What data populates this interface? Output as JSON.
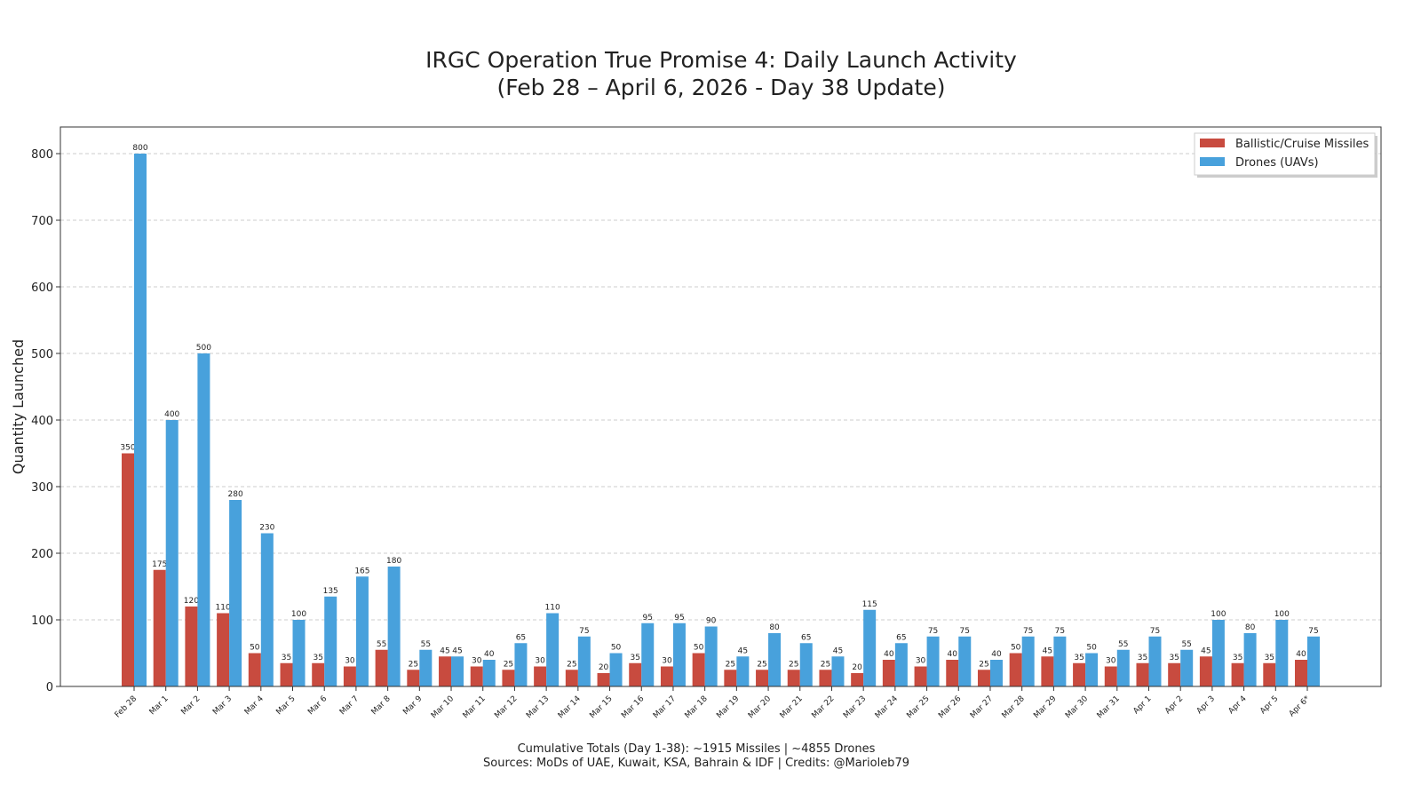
{
  "chart_data": {
    "type": "bar",
    "title": "IRGC Operation True Promise 4: Daily Launch Activity",
    "subtitle": "(Feb 28 – April 6, 2026 - Day 38 Update)",
    "xlabel": "",
    "ylabel": "Quantity Launched",
    "ylim": [
      0,
      840
    ],
    "yticks": [
      0,
      100,
      200,
      300,
      400,
      500,
      600,
      700,
      800
    ],
    "grid": true,
    "legend_position": "top-right",
    "categories": [
      "Feb 28",
      "Mar 1",
      "Mar 2",
      "Mar 3",
      "Mar 4",
      "Mar 5",
      "Mar 6",
      "Mar 7",
      "Mar 8",
      "Mar 9",
      "Mar 10",
      "Mar 11",
      "Mar 12",
      "Mar 13",
      "Mar 14",
      "Mar 15",
      "Mar 16",
      "Mar 17",
      "Mar 18",
      "Mar 19",
      "Mar 20",
      "Mar 21",
      "Mar 22",
      "Mar 23",
      "Mar 24",
      "Mar 25",
      "Mar 26",
      "Mar 27",
      "Mar 28",
      "Mar 29",
      "Mar 30",
      "Mar 31",
      "Apr 1",
      "Apr 2",
      "Apr 3",
      "Apr 4",
      "Apr 5",
      "Apr 6*"
    ],
    "series": [
      {
        "name": "Ballistic/Cruise Missiles",
        "color": "#c84b3f",
        "values": [
          350,
          175,
          120,
          110,
          50,
          35,
          35,
          30,
          55,
          25,
          45,
          30,
          25,
          30,
          25,
          20,
          35,
          30,
          50,
          25,
          25,
          25,
          25,
          20,
          40,
          30,
          40,
          25,
          50,
          45,
          35,
          30,
          35,
          35,
          45,
          35,
          35,
          40
        ]
      },
      {
        "name": "Drones (UAVs)",
        "color": "#48a1dc",
        "values": [
          800,
          400,
          500,
          280,
          230,
          100,
          135,
          165,
          180,
          55,
          45,
          40,
          65,
          110,
          75,
          50,
          95,
          95,
          90,
          45,
          80,
          65,
          45,
          115,
          65,
          75,
          75,
          40,
          75,
          75,
          50,
          55,
          75,
          55,
          100,
          80,
          100,
          75
        ]
      }
    ],
    "footer": [
      "Cumulative Totals (Day 1-38): ~1915 Missiles | ~4855 Drones",
      "Sources: MoDs of UAE, Kuwait, KSA, Bahrain & IDF | Credits: @Marioleb79"
    ]
  }
}
